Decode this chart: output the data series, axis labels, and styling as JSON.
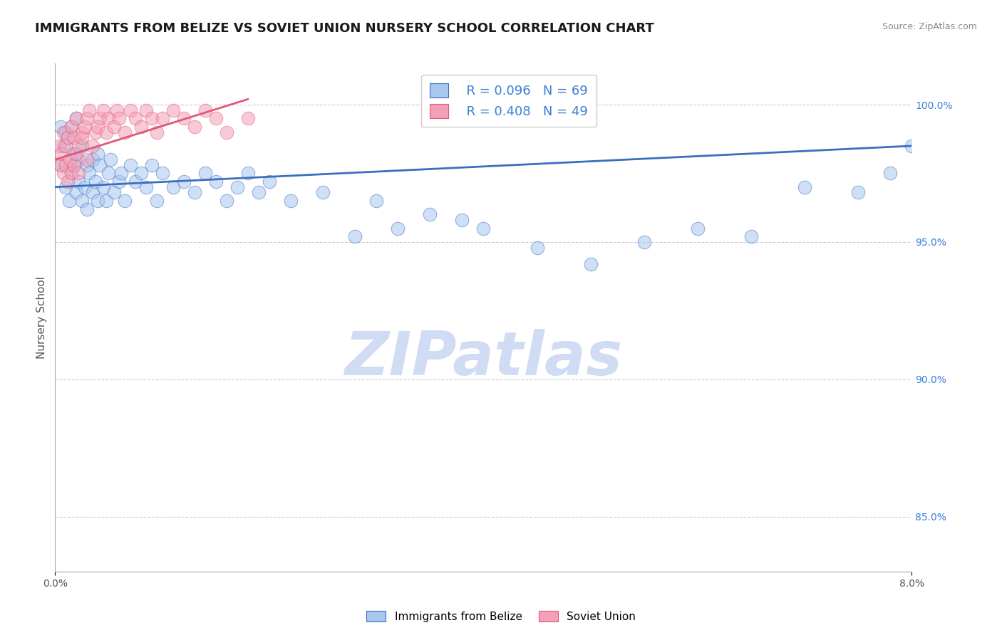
{
  "title": "IMMIGRANTS FROM BELIZE VS SOVIET UNION NURSERY SCHOOL CORRELATION CHART",
  "source": "Source: ZipAtlas.com",
  "ylabel": "Nursery School",
  "xmin": 0.0,
  "xmax": 8.0,
  "ymin": 83.0,
  "ymax": 101.5,
  "yticks": [
    85.0,
    90.0,
    95.0,
    100.0
  ],
  "ytick_labels": [
    "85.0%",
    "90.0%",
    "95.0%",
    "100.0%"
  ],
  "legend_R_belize": "R = 0.096",
  "legend_N_belize": "N = 69",
  "legend_R_soviet": "R = 0.408",
  "legend_N_soviet": "N = 49",
  "legend_label_belize": "Immigrants from Belize",
  "legend_label_soviet": "Soviet Union",
  "color_belize": "#a8c8f0",
  "color_soviet": "#f4a0b8",
  "color_line_belize": "#3a6fbe",
  "color_line_soviet": "#e05878",
  "watermark": "ZIPatlas",
  "watermark_color": "#d0dcf4",
  "title_fontsize": 13,
  "axis_label_fontsize": 11,
  "tick_label_fontsize": 10,
  "belize_x": [
    0.05,
    0.06,
    0.08,
    0.1,
    0.1,
    0.12,
    0.13,
    0.15,
    0.15,
    0.18,
    0.18,
    0.2,
    0.2,
    0.22,
    0.22,
    0.25,
    0.25,
    0.28,
    0.3,
    0.3,
    0.32,
    0.35,
    0.35,
    0.38,
    0.4,
    0.4,
    0.42,
    0.45,
    0.48,
    0.5,
    0.52,
    0.55,
    0.6,
    0.62,
    0.65,
    0.7,
    0.75,
    0.8,
    0.85,
    0.9,
    0.95,
    1.0,
    1.1,
    1.2,
    1.3,
    1.4,
    1.5,
    1.6,
    1.7,
    1.8,
    1.9,
    2.0,
    2.2,
    2.5,
    2.8,
    3.0,
    3.2,
    3.5,
    3.8,
    4.0,
    4.5,
    5.0,
    5.5,
    6.0,
    6.5,
    7.0,
    7.5,
    7.8,
    8.0
  ],
  "belize_y": [
    99.2,
    97.8,
    98.5,
    99.0,
    97.0,
    98.8,
    96.5,
    97.5,
    99.2,
    97.8,
    98.2,
    96.8,
    99.5,
    97.2,
    98.0,
    96.5,
    98.5,
    97.0,
    97.8,
    96.2,
    97.5,
    98.0,
    96.8,
    97.2,
    96.5,
    98.2,
    97.8,
    97.0,
    96.5,
    97.5,
    98.0,
    96.8,
    97.2,
    97.5,
    96.5,
    97.8,
    97.2,
    97.5,
    97.0,
    97.8,
    96.5,
    97.5,
    97.0,
    97.2,
    96.8,
    97.5,
    97.2,
    96.5,
    97.0,
    97.5,
    96.8,
    97.2,
    96.5,
    96.8,
    95.2,
    96.5,
    95.5,
    96.0,
    95.8,
    95.5,
    94.8,
    94.2,
    95.0,
    95.5,
    95.2,
    97.0,
    96.8,
    97.5,
    98.5
  ],
  "soviet_x": [
    0.04,
    0.05,
    0.06,
    0.08,
    0.08,
    0.1,
    0.1,
    0.12,
    0.12,
    0.14,
    0.15,
    0.15,
    0.18,
    0.18,
    0.2,
    0.2,
    0.22,
    0.22,
    0.25,
    0.25,
    0.28,
    0.3,
    0.3,
    0.32,
    0.35,
    0.38,
    0.4,
    0.42,
    0.45,
    0.48,
    0.5,
    0.55,
    0.58,
    0.6,
    0.65,
    0.7,
    0.75,
    0.8,
    0.85,
    0.9,
    0.95,
    1.0,
    1.1,
    1.2,
    1.3,
    1.4,
    1.5,
    1.6,
    1.8
  ],
  "soviet_y": [
    98.5,
    97.8,
    98.2,
    97.5,
    99.0,
    97.8,
    98.5,
    98.8,
    97.2,
    98.0,
    99.2,
    97.5,
    98.8,
    97.8,
    99.5,
    98.2,
    98.5,
    97.5,
    99.0,
    98.8,
    99.2,
    99.5,
    98.0,
    99.8,
    98.5,
    99.0,
    99.2,
    99.5,
    99.8,
    99.0,
    99.5,
    99.2,
    99.8,
    99.5,
    99.0,
    99.8,
    99.5,
    99.2,
    99.8,
    99.5,
    99.0,
    99.5,
    99.8,
    99.5,
    99.2,
    99.8,
    99.5,
    99.0,
    99.5
  ],
  "belize_trendline_x": [
    0.0,
    8.0
  ],
  "belize_trendline_y": [
    97.0,
    98.5
  ],
  "soviet_trendline_x": [
    0.0,
    1.8
  ],
  "soviet_trendline_y": [
    98.0,
    100.2
  ]
}
